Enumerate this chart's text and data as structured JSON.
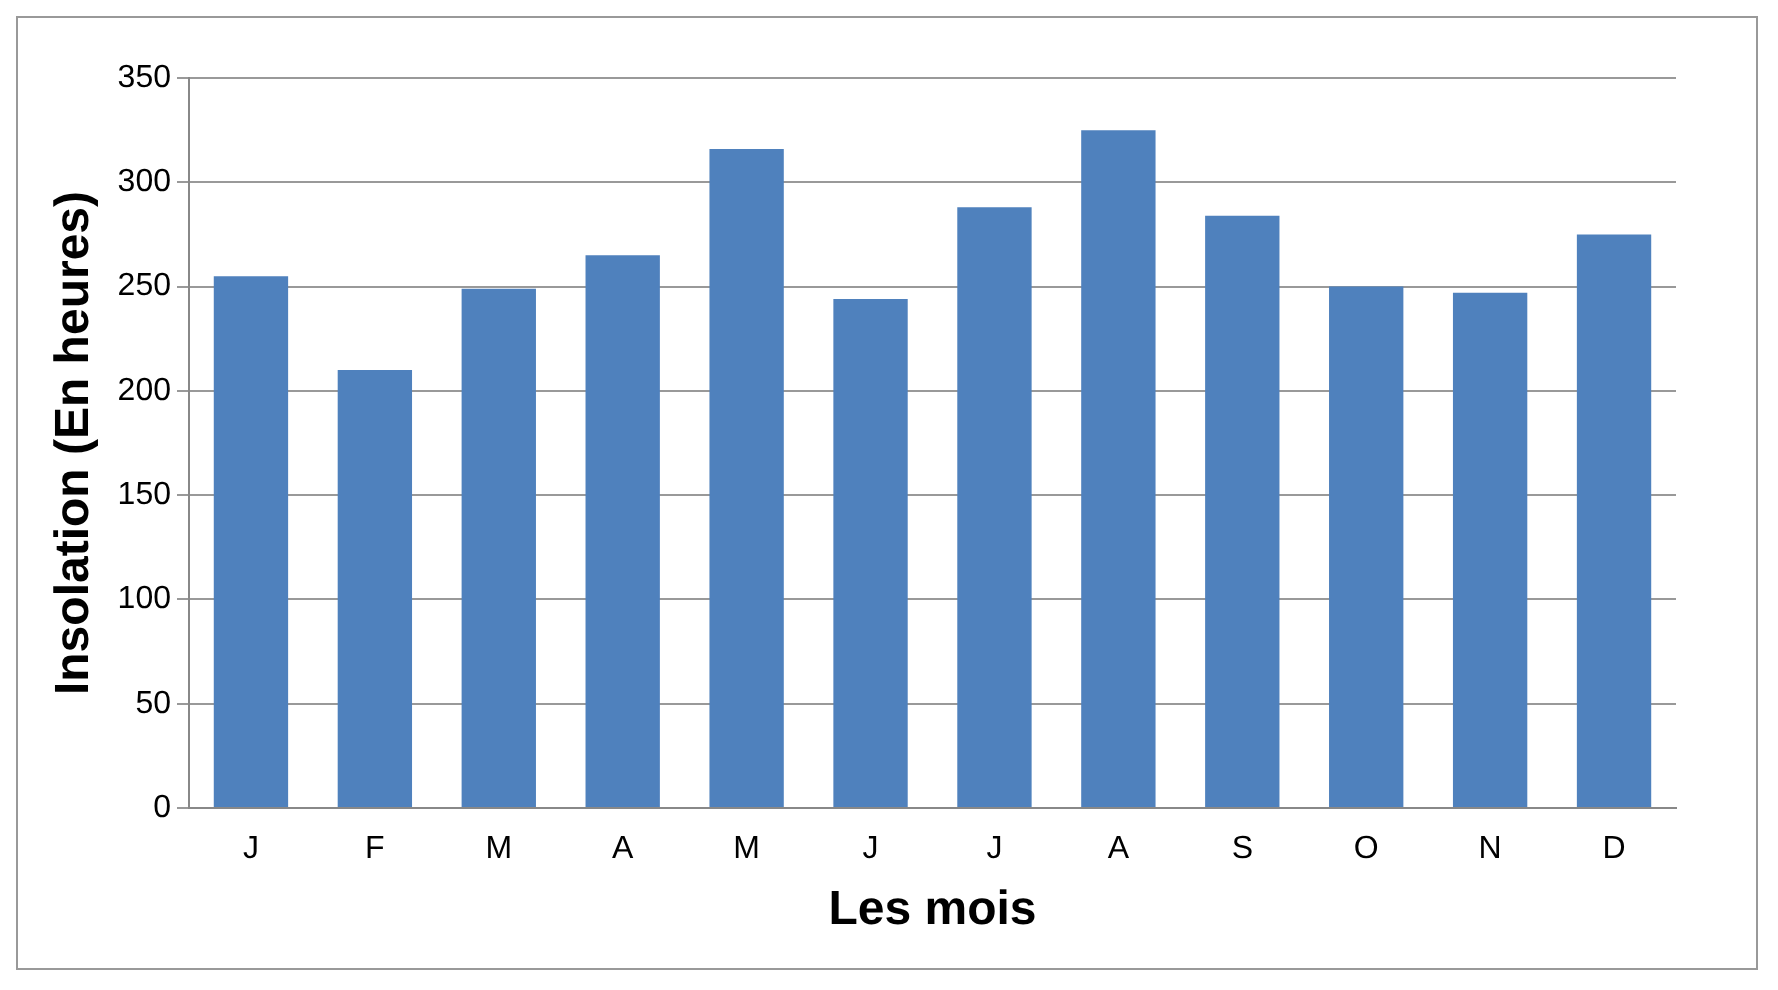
{
  "chart_data": {
    "type": "bar",
    "xlabel": "Les mois",
    "ylabel": "Insolation (En heures)",
    "categories": [
      "J",
      "F",
      "M",
      "A",
      "M",
      "J",
      "J",
      "A",
      "S",
      "O",
      "N",
      "D"
    ],
    "values": [
      255,
      210,
      249,
      265,
      316,
      244,
      288,
      325,
      284,
      250,
      247,
      275
    ],
    "color": "#4f81bd",
    "ylim": [
      0,
      350
    ],
    "yticks": [
      0,
      50,
      100,
      150,
      200,
      250,
      300,
      350
    ],
    "grid": "y",
    "legend": false
  }
}
